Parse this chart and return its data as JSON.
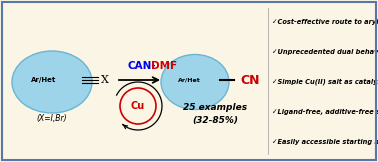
{
  "bg_color": "#faf5e4",
  "border_color": "#5577aa",
  "left_ellipse_color": "#9ed4ea",
  "right_ellipse_color": "#9ed4ea",
  "ellipse_edge_color": "#6ab4d4",
  "cu_circle_bg": "#faf5e4",
  "cu_text_color": "#cc0000",
  "can_dmf_blue": "#0000ee",
  "can_dmf_red": "#cc0000",
  "cn_color": "#cc0000",
  "bullet_items": [
    "✓Cost-effective route to aryl nitriles",
    "✓Unprecedented dual behaviour of CAN",
    "✓Simple Cu(II) salt as catalyst",
    "✓Ligand-free, additive-free synthesis",
    "✓Easily accessible starting materials"
  ],
  "left_label": "Ar/Het",
  "right_label": "Ar/Het",
  "x_label": "(X=I,Br)",
  "examples_text": "25 examples",
  "yield_text": "(32-85%)",
  "figsize": [
    3.78,
    1.62
  ],
  "dpi": 100
}
